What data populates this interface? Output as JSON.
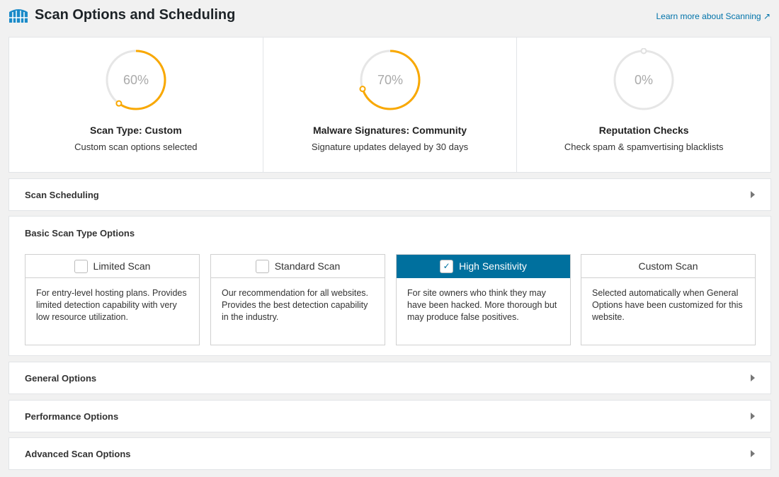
{
  "header": {
    "title": "Scan Options and Scheduling",
    "learn_more": "Learn more about Scanning",
    "accent": "#0073aa"
  },
  "stats": [
    {
      "percent": 60,
      "label": "60%",
      "title": "Scan Type: Custom",
      "subtitle": "Custom scan options selected"
    },
    {
      "percent": 70,
      "label": "70%",
      "title": "Malware Signatures: Community",
      "subtitle": "Signature updates delayed by 30 days"
    },
    {
      "percent": 0,
      "label": "0%",
      "title": "Reputation Checks",
      "subtitle": "Check spam & spamvertising blacklists"
    }
  ],
  "progress_color": "#f9a800",
  "sections": {
    "scheduling": "Scan Scheduling",
    "general": "General Options",
    "performance": "Performance Options",
    "advanced": "Advanced Scan Options"
  },
  "basic": {
    "title": "Basic Scan Type Options",
    "options": [
      {
        "label": "Limited Scan",
        "checked": false,
        "desc": "For entry-level hosting plans. Provides limited detection capability with very low resource utilization."
      },
      {
        "label": "Standard Scan",
        "checked": false,
        "desc": "Our recommendation for all websites. Provides the best detection capability in the industry."
      },
      {
        "label": "High Sensitivity",
        "checked": true,
        "desc": "For site owners who think they may have been hacked. More thorough but may produce false positives."
      },
      {
        "label": "Custom Scan",
        "checked": false,
        "desc": "Selected automatically when General Options have been customized for this website."
      }
    ]
  }
}
